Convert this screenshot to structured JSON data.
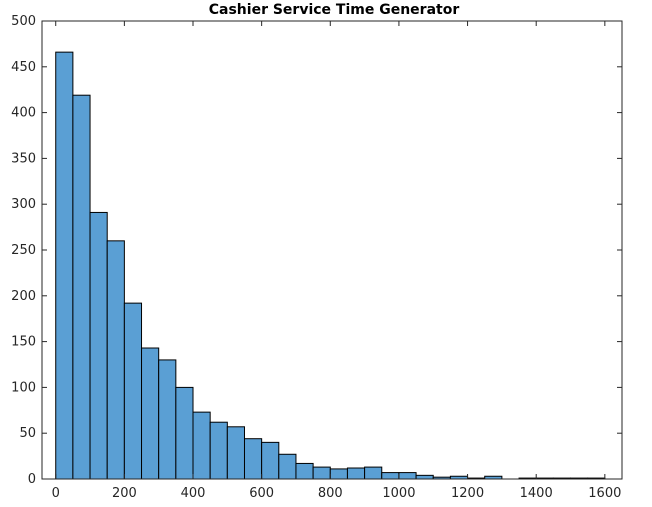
{
  "chart_data": {
    "type": "bar",
    "title": "Cashier Service Time Generator",
    "xlabel": "",
    "ylabel": "",
    "xlim": [
      -40,
      1650
    ],
    "ylim": [
      0,
      500
    ],
    "xticks": [
      0,
      200,
      400,
      600,
      800,
      1000,
      1200,
      1400,
      1600
    ],
    "yticks": [
      0,
      50,
      100,
      150,
      200,
      250,
      300,
      350,
      400,
      450,
      500
    ],
    "bin_width": 50,
    "bin_edges_start": [
      0,
      50,
      100,
      150,
      200,
      250,
      300,
      350,
      400,
      450,
      500,
      550,
      600,
      650,
      700,
      750,
      800,
      850,
      900,
      950,
      1000,
      1050,
      1100,
      1150,
      1200,
      1250,
      1300,
      1350,
      1400,
      1450,
      1500,
      1550
    ],
    "values": [
      466,
      419,
      291,
      260,
      192,
      143,
      130,
      100,
      73,
      62,
      57,
      44,
      40,
      27,
      17,
      13,
      11,
      12,
      13,
      7,
      7,
      4,
      2,
      3,
      1,
      3,
      0,
      1,
      1,
      1,
      1,
      1
    ],
    "grid": false,
    "legend": "none",
    "bar_color": "#5a9fd4",
    "edge_color": "#000000"
  }
}
